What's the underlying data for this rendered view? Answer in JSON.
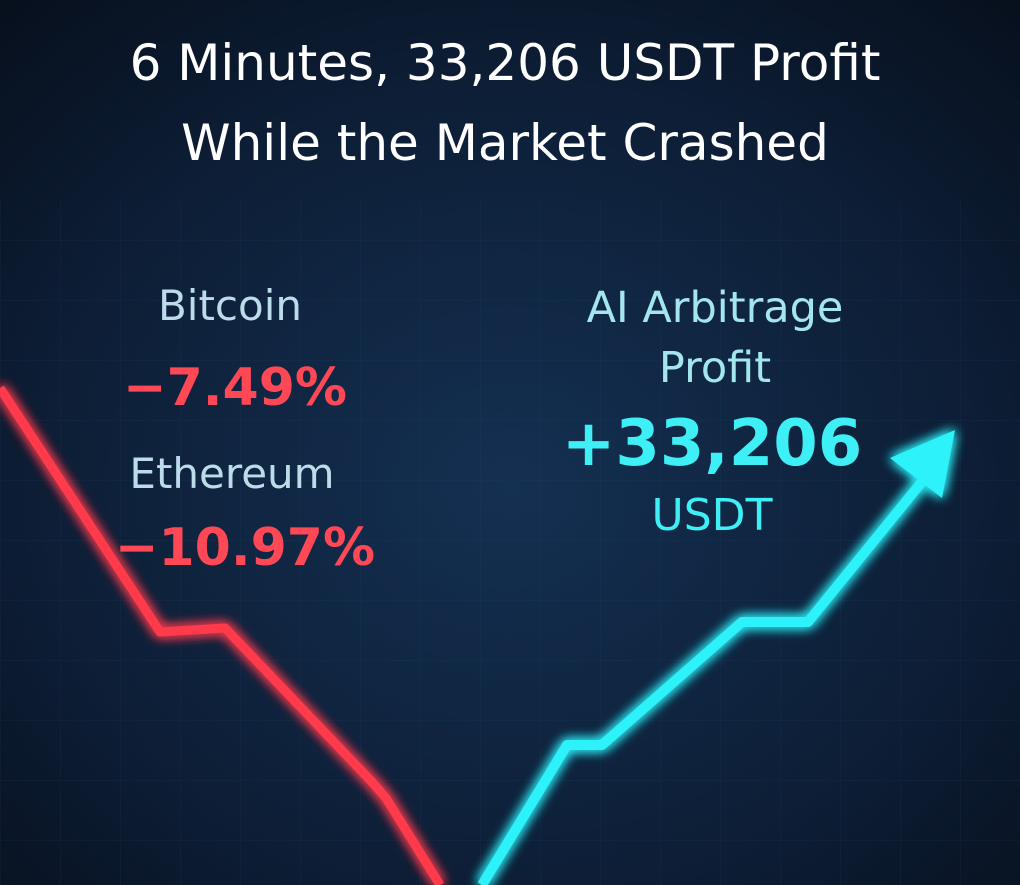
{
  "header": {
    "title_lines": [
      "6 Minutes, 33,206 USDT Profit",
      "While the Market Crashed"
    ]
  },
  "left": {
    "bitcoin": {
      "label": "Bitcoin",
      "change": "−7.49%"
    },
    "ethereum": {
      "label": "Ethereum",
      "change": "−10.97%"
    }
  },
  "right": {
    "label_lines": [
      "AI Arbitrage",
      "Profit"
    ],
    "amount": "+33,206",
    "unit": "USDT"
  }
}
